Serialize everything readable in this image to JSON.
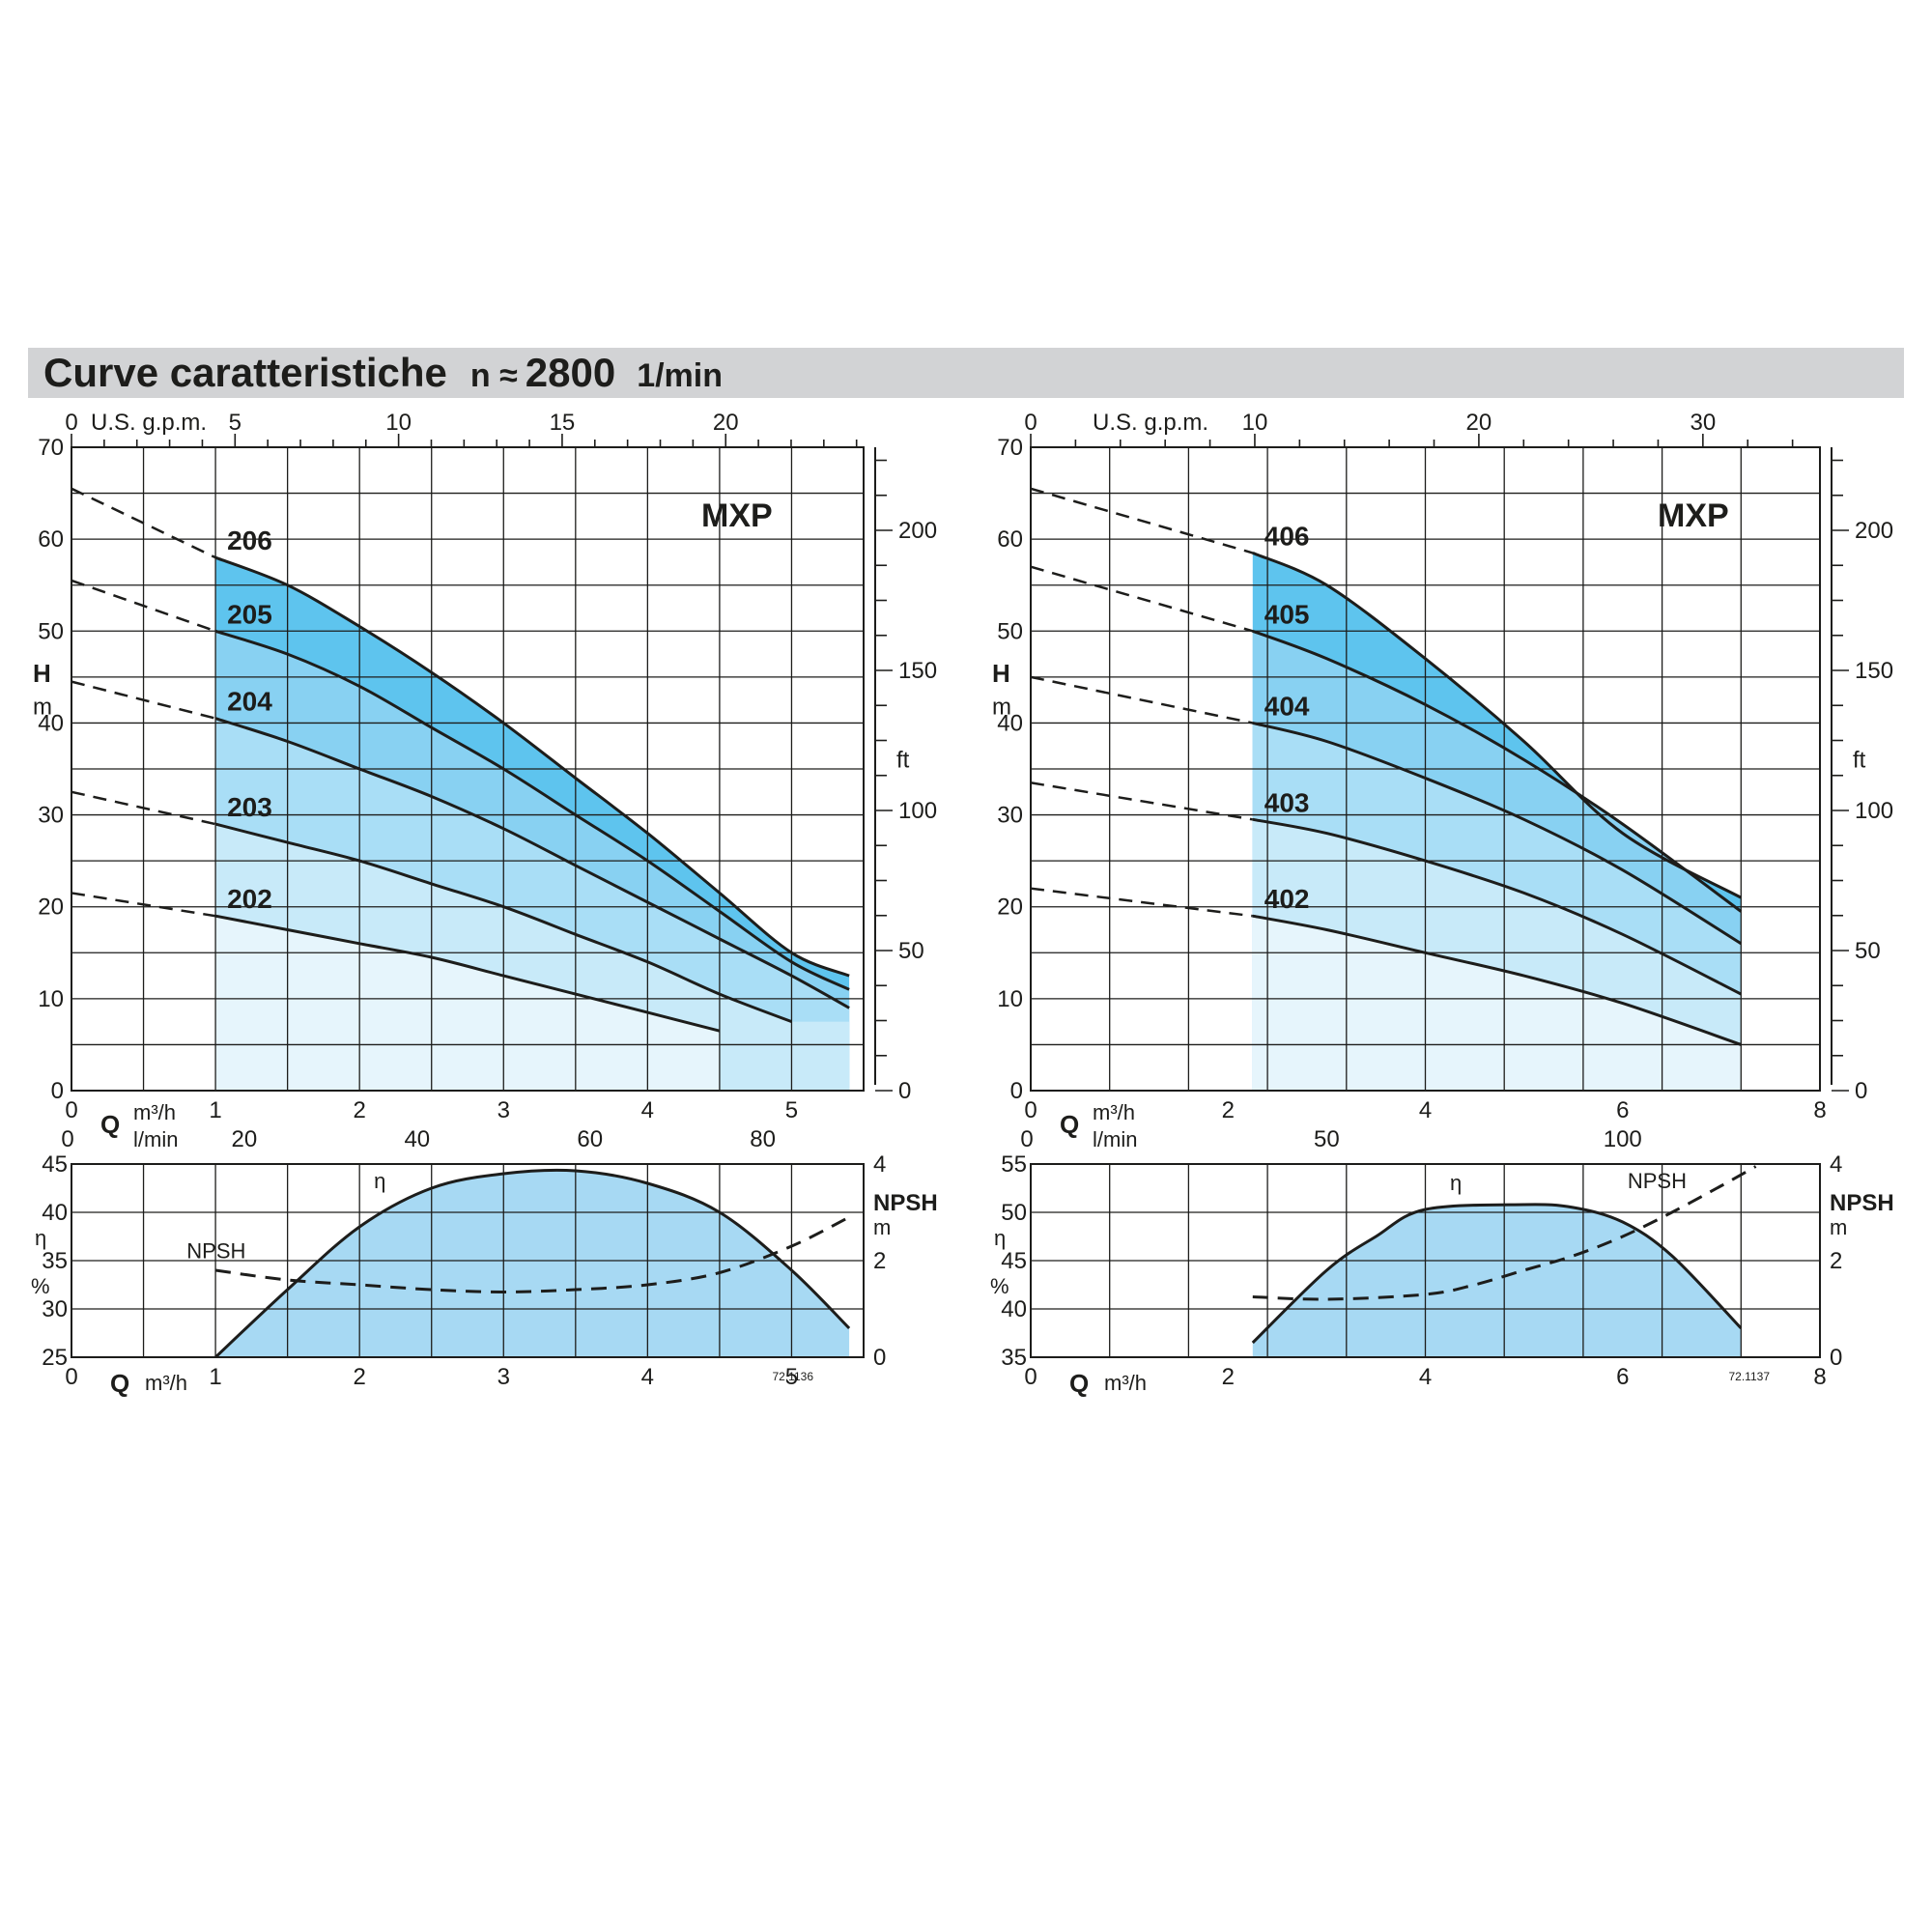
{
  "header": {
    "title": "Curve caratteristiche",
    "speed_prefix": "n ≈",
    "speed_value": "2800",
    "speed_unit": "1/min"
  },
  "chart_data": [
    {
      "type": "line",
      "id": "mxp-200-head",
      "brand_label": "MXP",
      "left_axis": {
        "label": "H",
        "unit": "m",
        "range": [
          0,
          70
        ],
        "ticks": [
          "0",
          "10",
          "20",
          "30",
          "40",
          "50",
          "60",
          "70"
        ]
      },
      "right_axis": {
        "unit": "ft",
        "ticks": [
          "0",
          "50",
          "100",
          "150",
          "200"
        ]
      },
      "top_axis": {
        "unit": "U.S. g.p.m.",
        "ticks": [
          "0",
          "5",
          "10",
          "15",
          "20"
        ]
      },
      "x_axis": {
        "label": "Q",
        "unit": "m³/h",
        "range": [
          0,
          5.5
        ],
        "ticks": [
          "0",
          "1",
          "2",
          "3",
          "4",
          "5"
        ]
      },
      "x2_axis": {
        "unit": "l/min",
        "ticks": [
          "0",
          "20",
          "40",
          "60",
          "80"
        ]
      },
      "operating_range": [
        1,
        5.4
      ],
      "series": [
        {
          "name": "206",
          "x": [
            1,
            1.5,
            2,
            2.5,
            3,
            3.5,
            4,
            4.5,
            5,
            5.4
          ],
          "y": [
            58,
            55,
            50.5,
            45.5,
            40,
            34,
            28,
            21.5,
            15,
            12.5
          ]
        },
        {
          "name": "205",
          "x": [
            1,
            1.5,
            2,
            2.5,
            3,
            3.5,
            4,
            4.5,
            5,
            5.4
          ],
          "y": [
            50,
            47.5,
            44,
            39.5,
            35,
            30,
            25,
            19.5,
            14,
            11
          ]
        },
        {
          "name": "204",
          "x": [
            1,
            1.5,
            2,
            2.5,
            3,
            3.5,
            4,
            4.5,
            5,
            5.4
          ],
          "y": [
            40.5,
            38,
            35,
            32,
            28.5,
            24.5,
            20.5,
            16.5,
            12.5,
            9
          ]
        },
        {
          "name": "203",
          "x": [
            1,
            1.5,
            2,
            2.5,
            3,
            3.5,
            4,
            4.5,
            5
          ],
          "y": [
            29,
            27,
            25,
            22.5,
            20,
            17,
            14,
            10.5,
            7.5
          ]
        },
        {
          "name": "202",
          "x": [
            1,
            1.5,
            2,
            2.5,
            3,
            3.5,
            4,
            4.5
          ],
          "y": [
            19,
            17.5,
            16,
            14.5,
            12.5,
            10.5,
            8.5,
            6.5
          ]
        }
      ],
      "dashed_extensions": [
        {
          "series": "206",
          "x": [
            0,
            1
          ],
          "y": [
            65.5,
            58
          ]
        },
        {
          "series": "205",
          "x": [
            0,
            1
          ],
          "y": [
            55.5,
            50
          ]
        },
        {
          "series": "204",
          "x": [
            0,
            1
          ],
          "y": [
            44.5,
            40.5
          ]
        },
        {
          "series": "203",
          "x": [
            0,
            1
          ],
          "y": [
            32.5,
            29
          ]
        },
        {
          "series": "202",
          "x": [
            0,
            1
          ],
          "y": [
            21.5,
            19
          ]
        }
      ]
    },
    {
      "type": "line",
      "id": "mxp-200-eff",
      "left_axis": {
        "label": "η",
        "unit": "%",
        "range": [
          25,
          45
        ],
        "ticks": [
          "25",
          "30",
          "35",
          "40",
          "45"
        ]
      },
      "right_axis": {
        "label": "NPSH",
        "unit": "m",
        "range": [
          0,
          4
        ],
        "ticks": [
          "0",
          "2",
          "4"
        ]
      },
      "x_axis": {
        "label": "Q",
        "unit": "m³/h",
        "range": [
          0,
          5.5
        ],
        "ticks": [
          "0",
          "1",
          "2",
          "3",
          "4",
          "5"
        ]
      },
      "drawing_code": "72.1136",
      "series": [
        {
          "name": "η",
          "x": [
            1,
            1.5,
            2,
            2.5,
            3,
            3.5,
            4,
            4.5,
            5,
            5.4
          ],
          "y": [
            25,
            32,
            38.5,
            42.5,
            44,
            44.3,
            43,
            40,
            34,
            28
          ]
        },
        {
          "name": "NPSH",
          "x": [
            1,
            1.5,
            2,
            2.5,
            3,
            3.5,
            4,
            4.5,
            5,
            5.4
          ],
          "y": [
            1.8,
            1.6,
            1.5,
            1.4,
            1.35,
            1.4,
            1.5,
            1.75,
            2.3,
            2.9
          ]
        }
      ]
    },
    {
      "type": "line",
      "id": "mxp-400-head",
      "brand_label": "MXP",
      "left_axis": {
        "label": "H",
        "unit": "m",
        "range": [
          0,
          70
        ],
        "ticks": [
          "0",
          "10",
          "20",
          "30",
          "40",
          "50",
          "60",
          "70"
        ]
      },
      "right_axis": {
        "unit": "ft",
        "ticks": [
          "0",
          "50",
          "100",
          "150",
          "200"
        ]
      },
      "top_axis": {
        "unit": "U.S. g.p.m.",
        "ticks": [
          "0",
          "10",
          "20",
          "30"
        ]
      },
      "x_axis": {
        "label": "Q",
        "unit": "m³/h",
        "range": [
          0,
          8
        ],
        "ticks": [
          "0",
          "2",
          "4",
          "6",
          "8"
        ]
      },
      "x2_axis": {
        "unit": "l/min",
        "ticks": [
          "0",
          "50",
          "100"
        ]
      },
      "operating_range": [
        2.25,
        7.2
      ],
      "series": [
        {
          "name": "406",
          "x": [
            2.25,
            3,
            4,
            5,
            6,
            7.2
          ],
          "y": [
            58.5,
            55,
            47,
            38,
            28,
            21
          ]
        },
        {
          "name": "405",
          "x": [
            2.25,
            3,
            4,
            5,
            6,
            7.2
          ],
          "y": [
            50,
            47,
            42,
            36,
            29,
            19.5
          ]
        },
        {
          "name": "404",
          "x": [
            2.25,
            3,
            4,
            5,
            6,
            7.2
          ],
          "y": [
            40,
            38,
            34,
            29.5,
            24,
            16
          ]
        },
        {
          "name": "403",
          "x": [
            2.25,
            3,
            4,
            5,
            6,
            7.2
          ],
          "y": [
            29.5,
            28,
            25,
            21.5,
            17,
            10.5
          ]
        },
        {
          "name": "402",
          "x": [
            2.25,
            3,
            4,
            5,
            6,
            7.2
          ],
          "y": [
            19,
            17.5,
            15,
            12.5,
            9.5,
            5
          ]
        }
      ],
      "dashed_extensions": [
        {
          "series": "406",
          "x": [
            0,
            2.25
          ],
          "y": [
            65.5,
            58.5
          ]
        },
        {
          "series": "405",
          "x": [
            0,
            2.25
          ],
          "y": [
            57,
            50
          ]
        },
        {
          "series": "404",
          "x": [
            0,
            2.25
          ],
          "y": [
            45,
            40
          ]
        },
        {
          "series": "403",
          "x": [
            0,
            2.25
          ],
          "y": [
            33.5,
            29.5
          ]
        },
        {
          "series": "402",
          "x": [
            0,
            2.25
          ],
          "y": [
            22,
            19
          ]
        }
      ]
    },
    {
      "type": "line",
      "id": "mxp-400-eff",
      "left_axis": {
        "label": "η",
        "unit": "%",
        "range": [
          35,
          55
        ],
        "ticks": [
          "35",
          "40",
          "45",
          "50",
          "55"
        ]
      },
      "right_axis": {
        "label": "NPSH",
        "unit": "m",
        "range": [
          0,
          4
        ],
        "ticks": [
          "0",
          "2",
          "4"
        ]
      },
      "x_axis": {
        "label": "Q",
        "unit": "m³/h",
        "range": [
          0,
          8
        ],
        "ticks": [
          "0",
          "2",
          "4",
          "6",
          "8"
        ]
      },
      "drawing_code": "72.1137",
      "series": [
        {
          "name": "η",
          "x": [
            2.25,
            3,
            3.5,
            4,
            5,
            5.5,
            6,
            6.5,
            7.2
          ],
          "y": [
            36.5,
            44,
            47.5,
            50.3,
            50.8,
            50.5,
            49,
            45.5,
            38
          ]
        },
        {
          "name": "NPSH",
          "x": [
            2.25,
            3,
            4,
            4.5,
            5,
            5.5,
            6,
            6.5,
            7,
            7.35
          ],
          "y": [
            1.25,
            1.2,
            1.3,
            1.5,
            1.8,
            2.1,
            2.5,
            3,
            3.55,
            3.95
          ]
        }
      ]
    }
  ]
}
